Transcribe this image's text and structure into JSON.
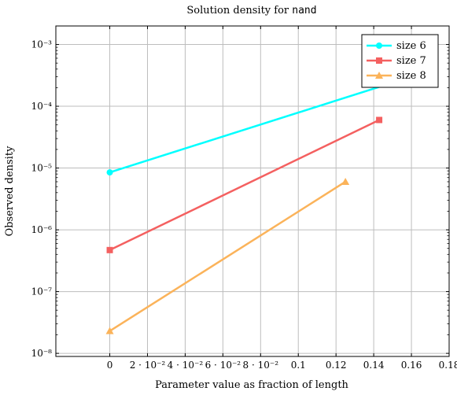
{
  "chart_data": {
    "type": "line",
    "title_prefix": "Solution density for ",
    "title_code": "nand",
    "xlabel": "Parameter value as fraction of length",
    "ylabel": "Observed density",
    "xlim": [
      -0.0286,
      0.18
    ],
    "ylim_log10": [
      -8.05,
      -2.7
    ],
    "yscale": "log",
    "grid": true,
    "legend_position": "top-right",
    "x_ticks": [
      {
        "value": 0,
        "label": "0"
      },
      {
        "value": 0.02,
        "label": "2 · 10⁻²"
      },
      {
        "value": 0.04,
        "label": "4 · 10⁻²"
      },
      {
        "value": 0.06,
        "label": "6 · 10⁻²"
      },
      {
        "value": 0.08,
        "label": "8 · 10⁻²"
      },
      {
        "value": 0.1,
        "label": "0.1"
      },
      {
        "value": 0.12,
        "label": "0.12"
      },
      {
        "value": 0.14,
        "label": "0.14"
      },
      {
        "value": 0.16,
        "label": "0.16"
      },
      {
        "value": 0.18,
        "label": "0.18"
      }
    ],
    "y_ticks": [
      {
        "exp": -8,
        "label": "10⁻⁸"
      },
      {
        "exp": -7,
        "label": "10⁻⁷"
      },
      {
        "exp": -6,
        "label": "10⁻⁶"
      },
      {
        "exp": -5,
        "label": "10⁻⁵"
      },
      {
        "exp": -4,
        "label": "10⁻⁴"
      },
      {
        "exp": -3,
        "label": "10⁻³"
      }
    ],
    "series": [
      {
        "name": "size 6",
        "color": "#00ffff",
        "marker": "circle",
        "points": [
          {
            "x": 0,
            "y": 8.5e-06
          },
          {
            "x": 0.1667,
            "y": 0.00035
          }
        ]
      },
      {
        "name": "size 7",
        "color": "#f46060",
        "marker": "square",
        "points": [
          {
            "x": 0,
            "y": 4.7e-07
          },
          {
            "x": 0.1429,
            "y": 6e-05
          }
        ]
      },
      {
        "name": "size 8",
        "color": "#fbb35a",
        "marker": "triangle",
        "points": [
          {
            "x": 0,
            "y": 2.3e-08
          },
          {
            "x": 0.125,
            "y": 6e-06
          }
        ]
      }
    ]
  }
}
